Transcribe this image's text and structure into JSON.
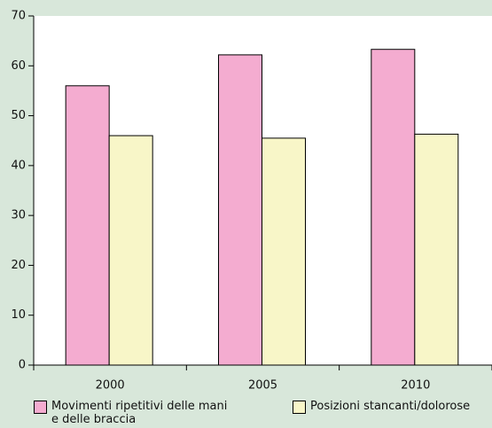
{
  "chart_data": {
    "type": "bar",
    "categories": [
      "2000",
      "2005",
      "2010"
    ],
    "series": [
      {
        "name": "Movimenti ripetitivi delle mani e delle braccia",
        "color": "#f4acd0",
        "values": [
          56,
          62.2,
          63.3
        ]
      },
      {
        "name": "Posizioni stancanti/dolorose",
        "color": "#f8f6c8",
        "values": [
          46,
          45.5,
          46.3
        ]
      }
    ],
    "ylim": [
      0,
      70
    ],
    "yticks": [
      0,
      10,
      20,
      30,
      40,
      50,
      60,
      70
    ],
    "grid": false
  }
}
